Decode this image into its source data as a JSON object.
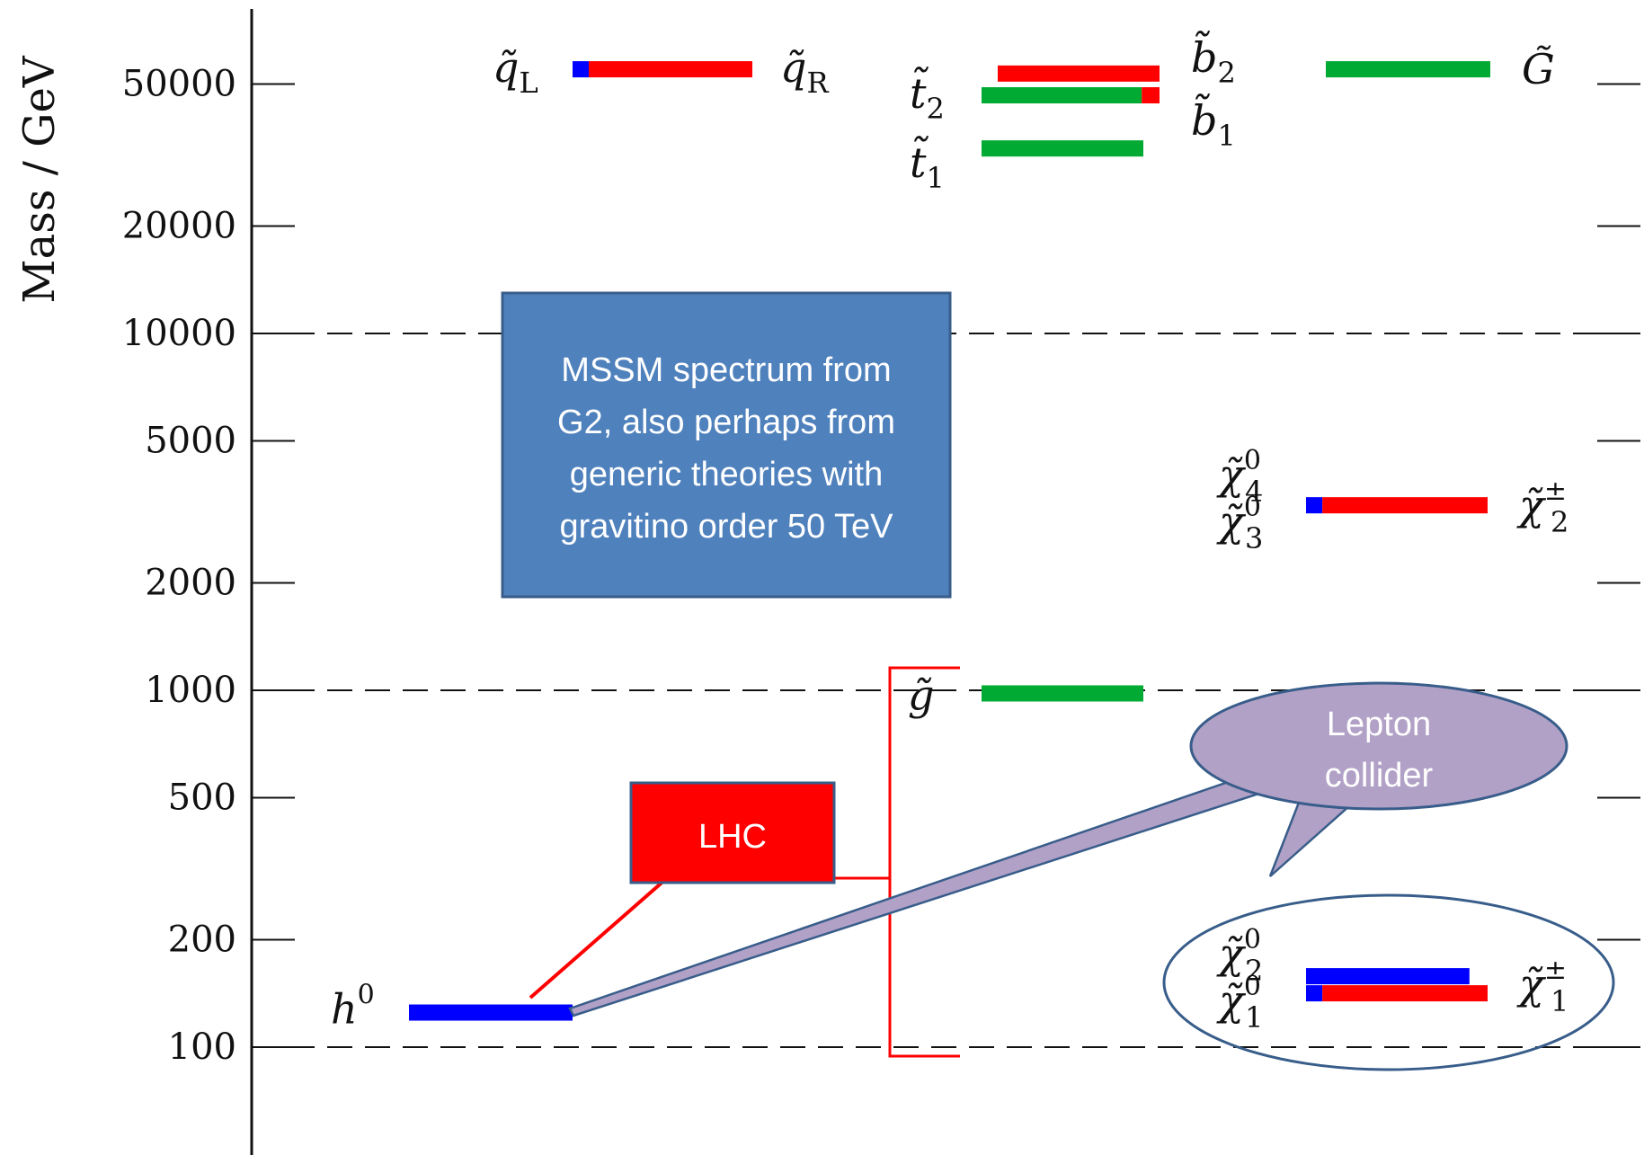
{
  "chart_data": {
    "type": "spectrum",
    "ylabel": "Mass / GeV",
    "yscale": "log",
    "ylim": [
      65,
      75000
    ],
    "yticks": [
      {
        "value": 100,
        "label": "100"
      },
      {
        "value": 200,
        "label": "200"
      },
      {
        "value": 500,
        "label": "500"
      },
      {
        "value": 1000,
        "label": "1000"
      },
      {
        "value": 2000,
        "label": "2000"
      },
      {
        "value": 5000,
        "label": "5000"
      },
      {
        "value": 10000,
        "label": "10000"
      },
      {
        "value": 20000,
        "label": "20000"
      },
      {
        "value": 50000,
        "label": "50000"
      }
    ],
    "dashed_lines_at": [
      100,
      1000,
      10000
    ],
    "colors": {
      "blue": "#0000ff",
      "red": "#ff0000",
      "green": "#00aa33"
    },
    "levels": [
      {
        "id": "h0",
        "label_main": "h",
        "label_sup": "0",
        "side": "left",
        "mass": 125,
        "segments": [
          {
            "color": "blue",
            "from": 0.0,
            "to": 1.0
          }
        ]
      },
      {
        "id": "squark",
        "label_left": "q̃",
        "label_left_sub": "L",
        "label_right": "q̃",
        "label_right_sub": "R",
        "mass": 55000,
        "segments": [
          {
            "color": "blue",
            "from": 0.0,
            "to": 0.09
          },
          {
            "color": "red",
            "from": 0.09,
            "to": 1.0
          }
        ]
      },
      {
        "id": "b2",
        "label_main": "b̃",
        "label_sub": "2",
        "side": "right",
        "mass": 53500,
        "segments": [
          {
            "color": "red",
            "from": 0.0,
            "to": 1.0
          }
        ]
      },
      {
        "id": "t2-b1",
        "label_main": "t̃",
        "label_sub": "2",
        "side": "left",
        "label_right": "b̃",
        "label_right_sub": "1",
        "mass": 46500,
        "segments": [
          {
            "color": "green",
            "from": 0.0,
            "to": 0.9
          },
          {
            "color": "red",
            "from": 0.9,
            "to": 1.0
          }
        ]
      },
      {
        "id": "t1",
        "label_main": "t̃",
        "label_sub": "1",
        "side": "left",
        "mass": 33000,
        "segments": [
          {
            "color": "green",
            "from": 0.0,
            "to": 1.0
          }
        ]
      },
      {
        "id": "gravitino",
        "label_main": "G̃",
        "side": "right",
        "mass": 55000,
        "segments": [
          {
            "color": "green",
            "from": 0.0,
            "to": 1.0
          }
        ]
      },
      {
        "id": "chi34",
        "label_top": "χ̃",
        "label_top_sub": "4",
        "label_top_sup": "0",
        "label_bot": "χ̃",
        "label_bot_sub": "3",
        "label_bot_sup": "0",
        "label_right": "χ̃",
        "label_right_sub": "2",
        "label_right_sup": "±",
        "mass": 3300,
        "segments": [
          {
            "color": "blue",
            "from": 0.0,
            "to": 0.09
          },
          {
            "color": "red",
            "from": 0.09,
            "to": 1.0
          }
        ]
      },
      {
        "id": "gluino",
        "label_main": "g̃",
        "side": "left",
        "mass": 980,
        "segments": [
          {
            "color": "green",
            "from": 0.0,
            "to": 1.0
          }
        ]
      },
      {
        "id": "chi12",
        "label_top": "χ̃",
        "label_top_sub": "2",
        "label_top_sup": "0",
        "label_bot": "χ̃",
        "label_bot_sub": "1",
        "label_bot_sup": "0",
        "label_right": "χ̃",
        "label_right_sub": "1",
        "label_right_sup": "±",
        "mass": 150,
        "segments": [
          {
            "color": "blue",
            "from": 0.0,
            "to": 0.9
          },
          {
            "color": "blue",
            "from": 0.0,
            "to": 0.09,
            "offset": "lower"
          },
          {
            "color": "red",
            "from": 0.09,
            "to": 1.0,
            "offset": "lower"
          }
        ]
      }
    ]
  },
  "annotations": {
    "info_box": {
      "lines": [
        "MSSM spectrum from",
        "G2, also perhaps from",
        "generic theories with",
        "gravitino order 50 TeV"
      ],
      "fill": "#4f81bd",
      "stroke": "#385d8a"
    },
    "lhc_box": {
      "text": "LHC",
      "fill": "#ff0000",
      "stroke": "#385d8a"
    },
    "lepton_bubble": {
      "lines": [
        "Lepton",
        "collider"
      ],
      "fill": "#b2a1c7",
      "stroke": "#385d8a"
    }
  }
}
